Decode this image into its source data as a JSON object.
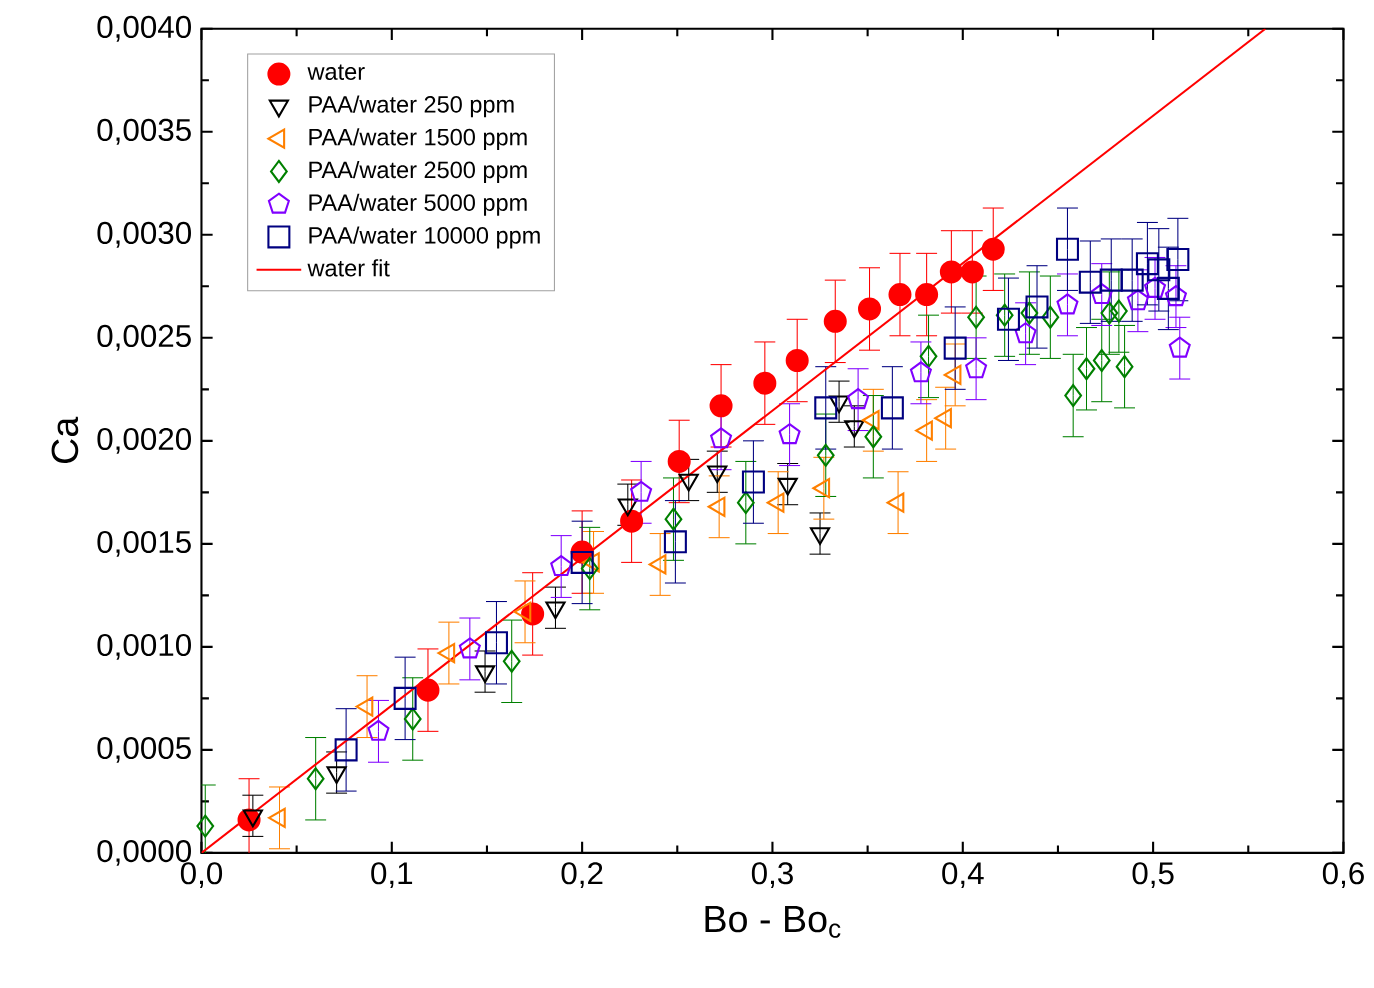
{
  "chart_data": {
    "type": "scatter",
    "xlabel": "Bo - Bo$_{c}$",
    "ylabel": "Ca",
    "xlim": [
      0,
      0.6
    ],
    "ylim": [
      0,
      0.004
    ],
    "xticks": [
      {
        "value": 0,
        "label": "0,0"
      },
      {
        "value": 0.1,
        "label": "0,1"
      },
      {
        "value": 0.2,
        "label": "0,2"
      },
      {
        "value": 0.3,
        "label": "0,3"
      },
      {
        "value": 0.4,
        "label": "0,4"
      },
      {
        "value": 0.5,
        "label": "0,5"
      },
      {
        "value": 0.6,
        "label": "0,6"
      }
    ],
    "yticks": [
      {
        "value": 0,
        "label": "0,0000"
      },
      {
        "value": 0.0005,
        "label": "0,0005"
      },
      {
        "value": 0.001,
        "label": "0,0010"
      },
      {
        "value": 0.0015,
        "label": "0,0015"
      },
      {
        "value": 0.002,
        "label": "0,0020"
      },
      {
        "value": 0.0025,
        "label": "0,0025"
      },
      {
        "value": 0.003,
        "label": "0,0030"
      },
      {
        "value": 0.0035,
        "label": "0,0035"
      },
      {
        "value": 0.004,
        "label": "0,0040"
      }
    ],
    "legend": "top left",
    "series": [
      {
        "name": "water",
        "color": "#ff0000",
        "marker": "circle",
        "x": [
          0.025,
          0.119,
          0.174,
          0.2,
          0.226,
          0.251,
          0.273,
          0.296,
          0.313,
          0.333,
          0.351,
          0.367,
          0.381,
          0.394,
          0.405,
          0.416
        ],
        "values": [
          0.00016,
          0.00079,
          0.00116,
          0.00146,
          0.00161,
          0.0019,
          0.00217,
          0.00228,
          0.00239,
          0.00258,
          0.00264,
          0.00271,
          0.00271,
          0.00282,
          0.00282,
          0.00293
        ],
        "errors": [
          0.0002,
          0.0002,
          0.0002,
          0.0002,
          0.0002,
          0.0002,
          0.0002,
          0.0002,
          0.0002,
          0.0002,
          0.0002,
          0.0002,
          0.0002,
          0.0002,
          0.0002,
          0.0002
        ]
      },
      {
        "name": "PAA/water 250 ppm",
        "color": "#000000",
        "marker": "triangle",
        "x": [
          0.027,
          0.071,
          0.149,
          0.186,
          0.224,
          0.256,
          0.271,
          0.308,
          0.325,
          0.335,
          0.343
        ],
        "values": [
          0.00018,
          0.00039,
          0.00088,
          0.00119,
          0.00169,
          0.00181,
          0.00185,
          0.00179,
          0.00155,
          0.00219,
          0.00207
        ],
        "errors": [
          0.0001,
          0.0001,
          0.0001,
          0.0001,
          0.0001,
          0.0001,
          0.0001,
          0.0001,
          0.0001,
          0.0001,
          0.0001
        ]
      },
      {
        "name": "PAA/water 1500 ppm",
        "color": "#ff8000",
        "marker": "triangle",
        "x": [
          0.041,
          0.087,
          0.13,
          0.17,
          0.206,
          0.241,
          0.272,
          0.303,
          0.327,
          0.353,
          0.366,
          0.381,
          0.391,
          0.396
        ],
        "values": [
          0.00017,
          0.00071,
          0.00097,
          0.00117,
          0.00141,
          0.0014,
          0.00168,
          0.0017,
          0.00177,
          0.0021,
          0.0017,
          0.00205,
          0.00211,
          0.00232
        ],
        "errors": [
          0.00015,
          0.00015,
          0.00015,
          0.00015,
          0.00015,
          0.00015,
          0.00015,
          0.00015,
          0.00015,
          0.00015,
          0.00015,
          0.00015,
          0.00015,
          0.00015
        ]
      },
      {
        "name": "PAA/water 2500 ppm",
        "color": "#008000",
        "marker": "diamond",
        "x": [
          0.002,
          0.06,
          0.111,
          0.163,
          0.204,
          0.248,
          0.286,
          0.328,
          0.353,
          0.382,
          0.407,
          0.422,
          0.435,
          0.446,
          0.458,
          0.465,
          0.473,
          0.485,
          0.477,
          0.482
        ],
        "values": [
          0.00013,
          0.00036,
          0.00065,
          0.00093,
          0.00138,
          0.00162,
          0.0017,
          0.00193,
          0.00202,
          0.00241,
          0.0026,
          0.00261,
          0.00262,
          0.0026,
          0.00222,
          0.00235,
          0.00239,
          0.00236,
          0.00262,
          0.00263
        ],
        "errors": [
          0.0002,
          0.0002,
          0.0002,
          0.0002,
          0.0002,
          0.0002,
          0.0002,
          0.0002,
          0.0002,
          0.0002,
          0.0002,
          0.0002,
          0.0002,
          0.0002,
          0.0002,
          0.0002,
          0.0002,
          0.0002,
          0.0002,
          0.0002
        ]
      },
      {
        "name": "PAA/water 5000 ppm",
        "color": "#8000ff",
        "x": [
          0.093,
          0.141,
          0.189,
          0.231,
          0.273,
          0.309,
          0.345,
          0.378,
          0.407,
          0.433,
          0.455,
          0.473,
          0.492,
          0.501,
          0.512,
          0.514
        ],
        "values": [
          0.00059,
          0.00099,
          0.00139,
          0.00175,
          0.00201,
          0.00203,
          0.0022,
          0.00233,
          0.00235,
          0.00252,
          0.00266,
          0.00271,
          0.00268,
          0.00274,
          0.0027,
          0.00245
        ],
        "errors": [
          0.00015,
          0.00015,
          0.00015,
          0.00015,
          0.00015,
          0.00015,
          0.00015,
          0.00015,
          0.00015,
          0.00015,
          0.00015,
          0.00015,
          0.00015,
          0.00015,
          0.00015,
          0.00015
        ]
      },
      {
        "name": "PAA/water 10000 ppm",
        "color": "#000080",
        "marker": "square",
        "x": [
          0.076,
          0.107,
          0.155,
          0.2,
          0.249,
          0.29,
          0.328,
          0.363,
          0.396,
          0.424,
          0.439,
          0.455,
          0.467,
          0.478,
          0.489,
          0.497,
          0.503,
          0.508,
          0.513
        ],
        "values": [
          0.0005,
          0.00075,
          0.00102,
          0.00141,
          0.00151,
          0.0018,
          0.00216,
          0.00216,
          0.00245,
          0.00259,
          0.00265,
          0.00293,
          0.00277,
          0.00278,
          0.00278,
          0.00286,
          0.00283,
          0.00274,
          0.00288
        ],
        "errors": [
          0.0002,
          0.0002,
          0.0002,
          0.0002,
          0.0002,
          0.0002,
          0.0002,
          0.0002,
          0.0002,
          0.0002,
          0.0002,
          0.0002,
          0.0002,
          0.0002,
          0.0002,
          0.0002,
          0.0002,
          0.0002,
          0.0002
        ]
      },
      {
        "name": "water fit",
        "color": "#ff0000",
        "type": "line",
        "marker": "none",
        "line_style": "solid",
        "x": [
          0,
          0.559
        ],
        "values": [
          0,
          0.004
        ]
      }
    ]
  }
}
